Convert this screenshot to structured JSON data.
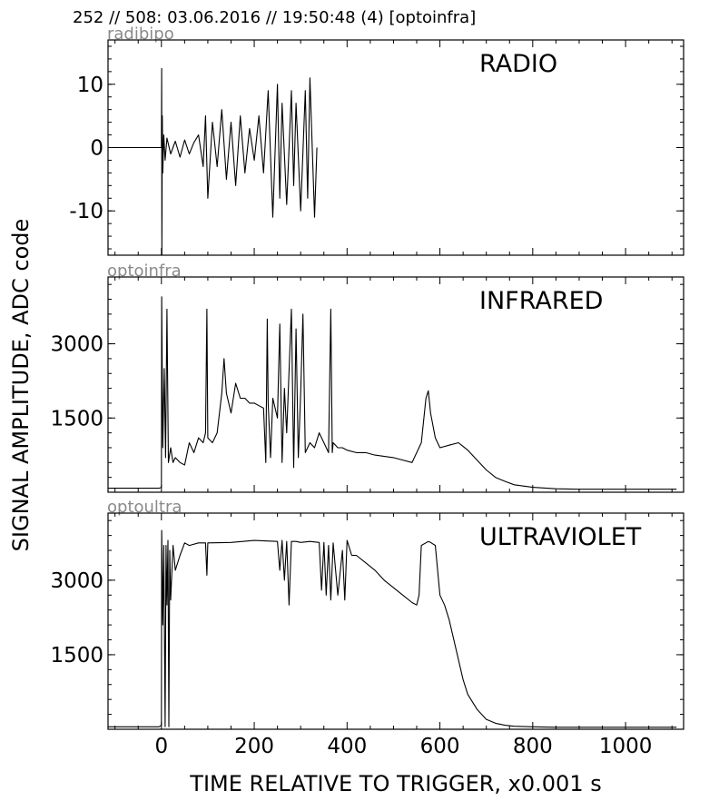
{
  "header": {
    "title": "252 // 508:   03.06.2016 // 19:50:48 (4)  [optoinfra]"
  },
  "axes": {
    "xlabel": "TIME RELATIVE TO TRIGGER,   x0.001 s",
    "ylabel": "SIGNAL AMPLITUDE,  ADC code"
  },
  "chart_data": [
    {
      "type": "line",
      "channel": "radibipo",
      "title": "RADIO",
      "xlim": [
        -115,
        1125
      ],
      "ylim": [
        -17,
        17
      ],
      "xticks": [
        0,
        200,
        400,
        600,
        800,
        1000
      ],
      "yticks": [
        10,
        0,
        -10
      ],
      "ytick_labels": [
        "10",
        "0",
        "-10"
      ],
      "series": [
        {
          "x": [
            -115,
            -5,
            0,
            0.5,
            1,
            2,
            3,
            5,
            8,
            12,
            20,
            30,
            40,
            50,
            60,
            70,
            80,
            90,
            95,
            100,
            110,
            120,
            130,
            140,
            150,
            160,
            170,
            180,
            190,
            200,
            210,
            220,
            230,
            240,
            250,
            255,
            260,
            270,
            280,
            285,
            290,
            300,
            310,
            315,
            320,
            330,
            335
          ],
          "y": [
            0,
            0,
            0,
            12.5,
            -17,
            5,
            -4,
            2,
            -2,
            1.5,
            -1,
            1,
            -1.5,
            1.2,
            -1,
            0.8,
            2,
            -3,
            5,
            -8,
            4,
            -3,
            6,
            -5,
            4,
            -6,
            5,
            -4,
            3,
            -2,
            5,
            -4,
            9,
            -11,
            10,
            -8,
            7,
            -9,
            9,
            -6,
            7,
            -10,
            9,
            -8,
            11,
            -11,
            0
          ]
        }
      ]
    },
    {
      "type": "line",
      "channel": "optoinfra",
      "title": "INFRARED",
      "xlim": [
        -115,
        1125
      ],
      "ylim": [
        0,
        4350
      ],
      "xticks": [
        0,
        200,
        400,
        600,
        800,
        1000
      ],
      "yticks": [
        3000,
        1500
      ],
      "ytick_labels": [
        "3000",
        "1500"
      ],
      "series": [
        {
          "x": [
            -115,
            -5,
            0,
            0.5,
            3,
            6,
            9,
            12,
            15,
            20,
            25,
            30,
            40,
            50,
            60,
            70,
            80,
            90,
            95,
            98,
            100,
            110,
            120,
            130,
            135,
            140,
            150,
            160,
            170,
            180,
            190,
            200,
            210,
            220,
            225,
            228,
            230,
            235,
            240,
            250,
            255,
            260,
            265,
            270,
            280,
            285,
            290,
            295,
            300,
            305,
            310,
            320,
            330,
            340,
            350,
            360,
            365,
            368,
            370,
            380,
            390,
            400,
            420,
            440,
            460,
            500,
            540,
            560,
            570,
            575,
            580,
            590,
            600,
            620,
            640,
            660,
            680,
            700,
            720,
            740,
            760,
            800,
            850,
            900,
            1000,
            1110
          ],
          "y": [
            80,
            80,
            100,
            3950,
            900,
            2500,
            700,
            3700,
            600,
            900,
            600,
            700,
            600,
            550,
            1000,
            800,
            1100,
            1000,
            1200,
            3700,
            1100,
            1000,
            1200,
            2000,
            2700,
            2000,
            1600,
            2200,
            1900,
            1900,
            1800,
            1800,
            1750,
            1700,
            600,
            3500,
            1800,
            700,
            1900,
            1500,
            3400,
            600,
            2100,
            1200,
            3700,
            500,
            3300,
            700,
            2000,
            3600,
            800,
            1000,
            900,
            1200,
            1000,
            800,
            3700,
            800,
            1000,
            900,
            900,
            850,
            800,
            800,
            750,
            700,
            600,
            1000,
            1900,
            2050,
            1600,
            1100,
            900,
            950,
            1000,
            850,
            650,
            450,
            300,
            220,
            150,
            100,
            70,
            60,
            60,
            60
          ]
        }
      ]
    },
    {
      "type": "line",
      "channel": "optoultra",
      "title": "ULTRAVIOLET",
      "xlim": [
        -115,
        1125
      ],
      "ylim": [
        0,
        4350
      ],
      "xticks": [
        0,
        200,
        400,
        600,
        800,
        1000
      ],
      "yticks": [
        3000,
        1500
      ],
      "ytick_labels": [
        "3000",
        "1500"
      ],
      "series": [
        {
          "x": [
            -115,
            -5,
            0,
            0.5,
            3,
            5,
            8,
            10,
            12,
            14,
            16,
            18,
            20,
            25,
            30,
            40,
            50,
            60,
            80,
            95,
            98,
            100,
            150,
            200,
            250,
            255,
            260,
            265,
            270,
            275,
            280,
            290,
            300,
            320,
            340,
            345,
            350,
            355,
            360,
            365,
            370,
            380,
            390,
            395,
            400,
            410,
            420,
            440,
            460,
            480,
            500,
            520,
            540,
            550,
            555,
            560,
            575,
            580,
            590,
            600,
            610,
            620,
            630,
            640,
            650,
            660,
            680,
            700,
            720,
            740,
            760,
            800,
            850,
            900,
            1000,
            1110
          ],
          "y": [
            50,
            50,
            80,
            4000,
            2100,
            3700,
            50,
            3700,
            2500,
            3800,
            50,
            3600,
            2600,
            3700,
            3200,
            3500,
            3750,
            3700,
            3750,
            3750,
            3100,
            3750,
            3760,
            3800,
            3780,
            3200,
            3800,
            3000,
            3780,
            2500,
            3780,
            3780,
            3760,
            3780,
            3760,
            2800,
            3760,
            2700,
            3700,
            2600,
            3750,
            2700,
            3600,
            2600,
            3800,
            3500,
            3500,
            3350,
            3200,
            3000,
            2850,
            2700,
            2550,
            2500,
            2700,
            3700,
            3780,
            3760,
            3700,
            2700,
            2500,
            2200,
            1800,
            1400,
            1000,
            700,
            400,
            200,
            120,
            80,
            60,
            50,
            40,
            40,
            40,
            40
          ]
        }
      ]
    }
  ]
}
